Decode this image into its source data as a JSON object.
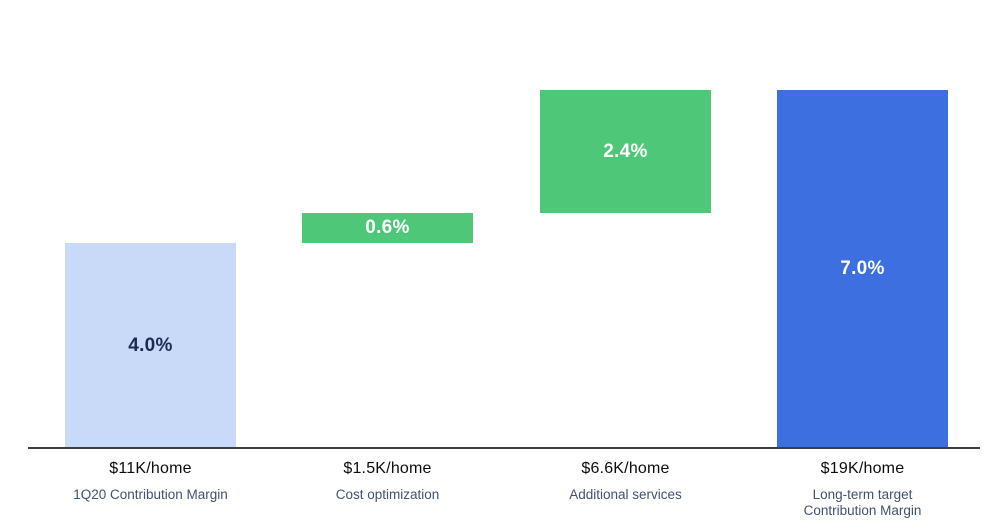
{
  "chart_data": {
    "type": "bar",
    "subtype": "waterfall",
    "title": "",
    "xlabel": "",
    "ylabel": "",
    "unit": "%",
    "ylim": [
      0,
      7.0
    ],
    "grid": false,
    "legend": false,
    "categories": [
      "1Q20 Contribution Margin",
      "Cost optimization",
      "Additional services",
      "Long-term target Contribution Margin"
    ],
    "bars": [
      {
        "name": "1q20-contribution-margin",
        "label": "4.0%",
        "value": 4.0,
        "start": 0.0,
        "end": 4.0,
        "value_label": "$11K/home",
        "category": "1Q20 Contribution Margin",
        "fill": "#c9d9f8",
        "label_color": "#1a2c52"
      },
      {
        "name": "cost-optimization",
        "label": "0.6%",
        "value": 0.6,
        "start": 4.0,
        "end": 4.6,
        "value_label": "$1.5K/home",
        "category": "Cost optimization",
        "fill": "#4ec878",
        "label_color": "#ffffff"
      },
      {
        "name": "additional-services",
        "label": "2.4%",
        "value": 2.4,
        "start": 4.6,
        "end": 7.0,
        "value_label": "$6.6K/home",
        "category": "Additional services",
        "fill": "#4ec878",
        "label_color": "#ffffff"
      },
      {
        "name": "long-term-target-contribution-margin",
        "label": "7.0%",
        "value": 7.0,
        "start": 0.0,
        "end": 7.0,
        "value_label": "$19K/home",
        "category": "Long-term target\nContribution Margin",
        "fill": "#3d6fe0",
        "label_color": "#ffffff"
      }
    ]
  },
  "colors": {
    "background": "#ffffff",
    "axis": "#3d3d3d",
    "value_label": "#0c0d0e",
    "category_label": "#42526f"
  }
}
